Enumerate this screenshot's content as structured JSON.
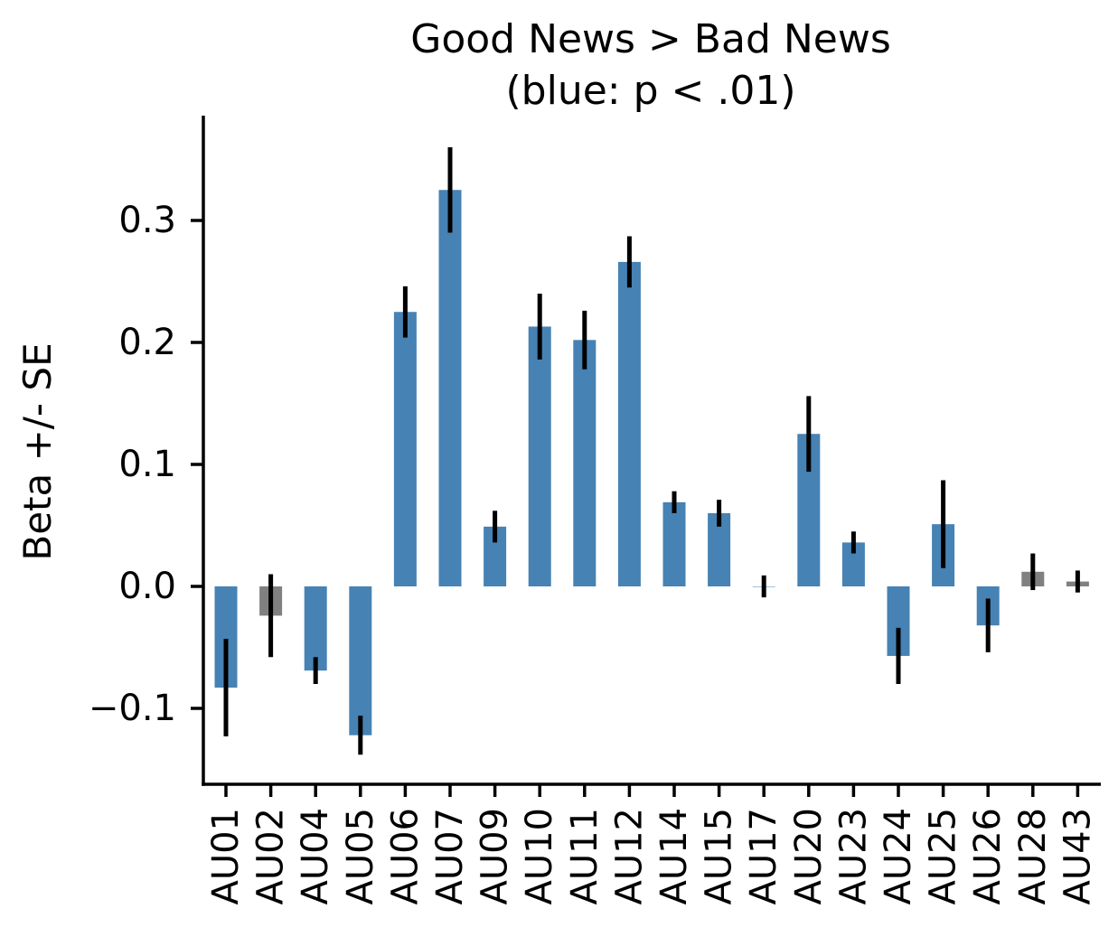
{
  "chart_data": {
    "type": "bar",
    "title": "Good News > Bad News",
    "subtitle": "(blue: p < .01)",
    "xlabel": "",
    "ylabel": "Beta +/- SE",
    "ylim": [
      -0.162,
      0.385
    ],
    "yticks": [
      -0.1,
      0.0,
      0.1,
      0.2,
      0.3
    ],
    "ytick_labels": [
      "−0.1",
      "0.0",
      "0.1",
      "0.2",
      "0.3"
    ],
    "grid": false,
    "colors": {
      "significant": "#4682b4",
      "nonsignificant": "#808080",
      "error": "#000000"
    },
    "categories": [
      "AU01",
      "AU02",
      "AU04",
      "AU05",
      "AU06",
      "AU07",
      "AU09",
      "AU10",
      "AU11",
      "AU12",
      "AU14",
      "AU15",
      "AU17",
      "AU20",
      "AU23",
      "AU24",
      "AU25",
      "AU26",
      "AU28",
      "AU43"
    ],
    "values": [
      -0.083,
      -0.024,
      -0.069,
      -0.122,
      0.225,
      0.325,
      0.049,
      0.213,
      0.202,
      0.266,
      0.069,
      0.06,
      0.0,
      0.125,
      0.036,
      -0.057,
      0.051,
      -0.032,
      0.012,
      0.004
    ],
    "errors": [
      0.04,
      0.034,
      0.011,
      0.016,
      0.021,
      0.035,
      0.013,
      0.027,
      0.024,
      0.021,
      0.009,
      0.011,
      0.009,
      0.031,
      0.009,
      0.023,
      0.036,
      0.022,
      0.015,
      0.009
    ],
    "significant": [
      true,
      false,
      true,
      true,
      true,
      true,
      true,
      true,
      true,
      true,
      true,
      true,
      true,
      true,
      true,
      true,
      true,
      true,
      false,
      false
    ]
  }
}
